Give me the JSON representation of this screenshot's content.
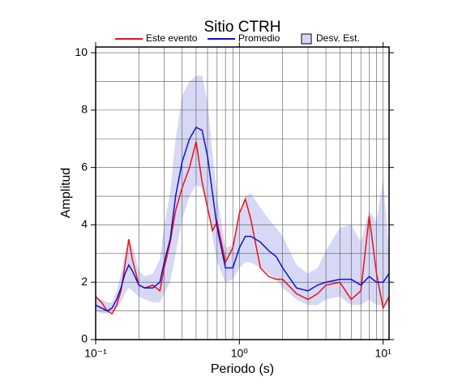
{
  "chart_data": {
    "type": "line",
    "title": "Sitio CTRH",
    "x_label": "Periodo (s)",
    "y_label": "Amplitud",
    "x": [
      0.1,
      0.11,
      0.12,
      0.13,
      0.14,
      0.15,
      0.16,
      0.17,
      0.18,
      0.2,
      0.22,
      0.25,
      0.28,
      0.3,
      0.33,
      0.36,
      0.4,
      0.45,
      0.5,
      0.55,
      0.6,
      0.65,
      0.7,
      0.8,
      0.9,
      1.0,
      1.1,
      1.2,
      1.4,
      1.6,
      1.8,
      2,
      2.5,
      3,
      3.5,
      4,
      5,
      6,
      7,
      8,
      9,
      10,
      11
    ],
    "series": [
      {
        "name": "Este evento",
        "color": "#ee1111",
        "values": [
          1.5,
          1.3,
          1.0,
          0.9,
          1.2,
          1.7,
          2.6,
          3.5,
          2.8,
          1.9,
          1.8,
          1.9,
          1.7,
          2.5,
          3.4,
          4.5,
          5.3,
          6.0,
          6.9,
          5.5,
          4.6,
          3.8,
          4.1,
          2.7,
          3.2,
          4.4,
          4.9,
          4.2,
          2.5,
          2.2,
          2.1,
          2.1,
          1.6,
          1.4,
          1.6,
          1.9,
          2.0,
          1.4,
          1.7,
          4.3,
          2.3,
          1.1,
          1.5
        ]
      },
      {
        "name": "Promedio",
        "color": "#1111cc",
        "values": [
          1.2,
          1.1,
          1.0,
          1.1,
          1.4,
          1.8,
          2.3,
          2.6,
          2.4,
          1.9,
          1.8,
          1.8,
          2.0,
          2.7,
          3.5,
          5.0,
          6.2,
          7.0,
          7.4,
          7.3,
          6.4,
          5.1,
          3.9,
          2.5,
          2.5,
          3.2,
          3.6,
          3.6,
          3.4,
          3.1,
          2.9,
          2.5,
          1.8,
          1.7,
          1.9,
          2.0,
          2.1,
          2.1,
          1.9,
          2.2,
          2.0,
          2.0,
          2.3
        ]
      },
      {
        "name": "Desv. Est.",
        "color": "#d6d8f6",
        "lower": [
          1.0,
          0.9,
          0.9,
          1.0,
          1.1,
          1.3,
          1.6,
          1.8,
          1.7,
          1.5,
          1.4,
          1.3,
          1.3,
          1.6,
          2.0,
          3.0,
          4.2,
          5.0,
          5.4,
          5.3,
          4.6,
          3.6,
          2.7,
          2.0,
          2.1,
          2.5,
          2.7,
          2.7,
          2.5,
          2.3,
          2.1,
          1.8,
          1.4,
          1.2,
          1.2,
          1.4,
          1.5,
          1.2,
          1.2,
          1.4,
          1.2,
          1.2,
          1.2
        ],
        "upper": [
          1.5,
          1.4,
          1.3,
          1.3,
          1.7,
          2.3,
          3.0,
          3.4,
          3.3,
          2.4,
          2.2,
          2.3,
          2.8,
          4.0,
          5.1,
          7.0,
          8.5,
          9.0,
          9.2,
          9.2,
          8.3,
          6.5,
          5.0,
          3.2,
          3.3,
          4.3,
          5.0,
          5.1,
          4.6,
          4.2,
          3.9,
          3.6,
          2.6,
          2.3,
          2.5,
          3.1,
          3.9,
          4.0,
          3.4,
          4.5,
          4.1,
          5.6,
          3.0
        ]
      }
    ],
    "xlog": true,
    "xlim": [
      0.1,
      11
    ],
    "ylim": [
      0,
      10.2
    ],
    "xticks": [
      {
        "value": 0.1,
        "label": "10⁻¹"
      },
      {
        "value": 1,
        "label": "10⁰"
      },
      {
        "value": 10,
        "label": "10¹"
      }
    ],
    "xminorticks": [
      0.2,
      0.3,
      0.4,
      0.5,
      0.6,
      0.7,
      0.8,
      0.9,
      2,
      3,
      4,
      5,
      6,
      7,
      8,
      9
    ],
    "yticks": [
      0,
      2,
      4,
      6,
      8,
      10
    ],
    "yminorticks": [
      1,
      3,
      5,
      7,
      9
    ],
    "grid": true,
    "legend": "top"
  }
}
